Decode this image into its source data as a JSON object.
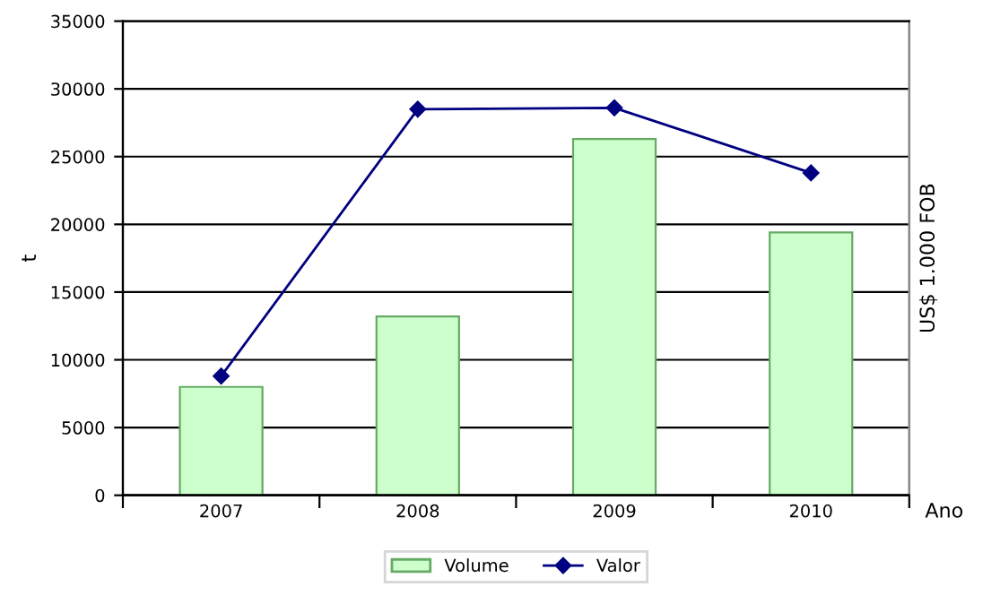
{
  "chart_data": {
    "type": "bar",
    "categories": [
      "2007",
      "2008",
      "2009",
      "2010"
    ],
    "series": [
      {
        "name": "Volume",
        "color": "#ccffcc",
        "values": [
          8000,
          13200,
          26300,
          19400
        ]
      },
      {
        "name": "Valor",
        "type": "line",
        "color": "#000080",
        "marker": "diamond",
        "values": [
          8800,
          28500,
          28600,
          23800
        ]
      }
    ],
    "ylabel": "t",
    "y2label": "US$ 1.000 FOB",
    "xlabel": "Ano",
    "ylim": [
      0,
      35000
    ],
    "yticks": [
      0,
      5000,
      10000,
      15000,
      20000,
      25000,
      30000,
      35000
    ],
    "grid": "y",
    "legend": "bottom"
  }
}
